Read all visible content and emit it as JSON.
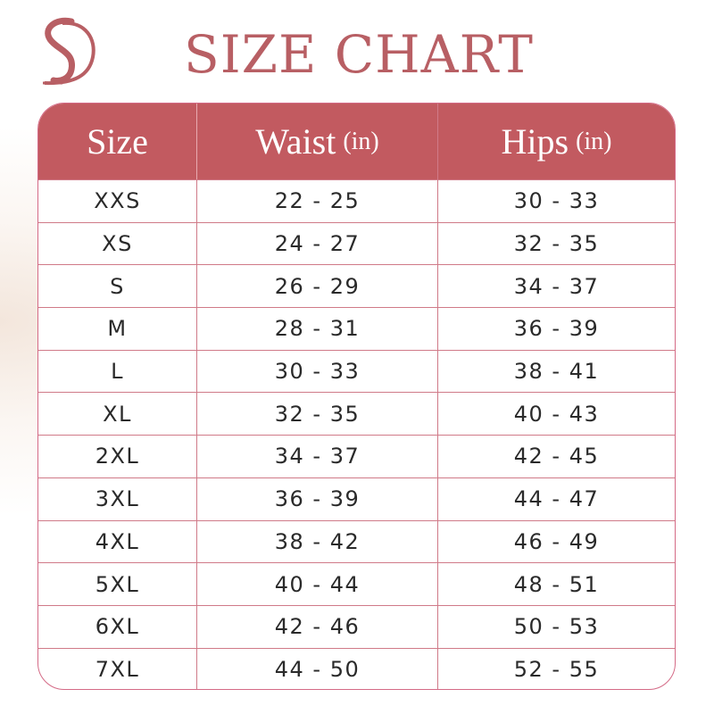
{
  "brand": {
    "logo": "SD monogram",
    "color": "#b85f64"
  },
  "title": "SIZE CHART",
  "colors": {
    "header": "#c25a60",
    "border": "#d07a88",
    "text": "#2a2a2a"
  },
  "chart_data": {
    "type": "table",
    "title": "SIZE CHART",
    "columns": [
      {
        "label": "Size",
        "unit": ""
      },
      {
        "label": "Waist",
        "unit": "(in)"
      },
      {
        "label": "Hips",
        "unit": "(in)"
      }
    ],
    "rows": [
      [
        "XXS",
        "22 - 25",
        "30 - 33"
      ],
      [
        "XS",
        "24 - 27",
        "32 - 35"
      ],
      [
        "S",
        "26 - 29",
        "34 - 37"
      ],
      [
        "M",
        "28 - 31",
        "36 - 39"
      ],
      [
        "L",
        "30 - 33",
        "38 - 41"
      ],
      [
        "XL",
        "32 - 35",
        "40 - 43"
      ],
      [
        "2XL",
        "34 - 37",
        "42 - 45"
      ],
      [
        "3XL",
        "36 - 39",
        "44 - 47"
      ],
      [
        "4XL",
        "38 - 42",
        "46 - 49"
      ],
      [
        "5XL",
        "40 - 44",
        "48 - 51"
      ],
      [
        "6XL",
        "42 - 46",
        "50 - 53"
      ],
      [
        "7XL",
        "44 - 50",
        "52 - 55"
      ]
    ]
  }
}
